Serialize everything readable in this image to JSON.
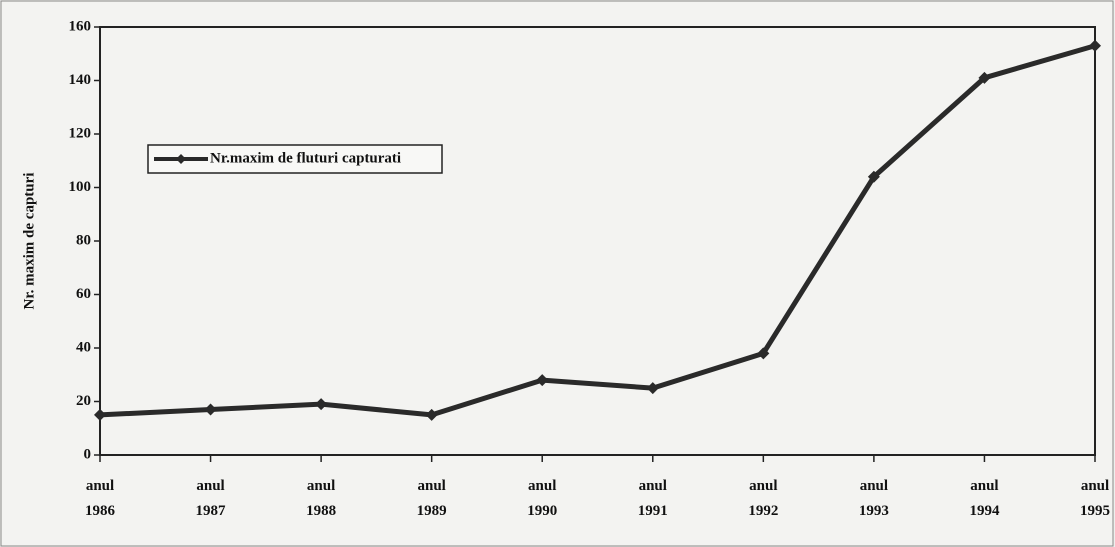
{
  "chart_data": {
    "type": "line",
    "y_label": "Nr. maxim de capturi",
    "categories": [
      "anul 1986",
      "anul 1987",
      "anul 1988",
      "anul 1989",
      "anul 1990",
      "anul 1991",
      "anul 1992",
      "anul 1993",
      "anul 1994",
      "anul 1995"
    ],
    "series": [
      {
        "name": "Nr.maxim de fluturi capturati",
        "color": "#2a2a2a",
        "values": [
          15,
          17,
          19,
          15,
          28,
          25,
          38,
          104,
          141,
          153
        ]
      }
    ],
    "ylim": [
      0,
      160
    ],
    "yticks": [
      0,
      20,
      40,
      60,
      80,
      100,
      120,
      140,
      160
    ],
    "legend": "upper left"
  }
}
